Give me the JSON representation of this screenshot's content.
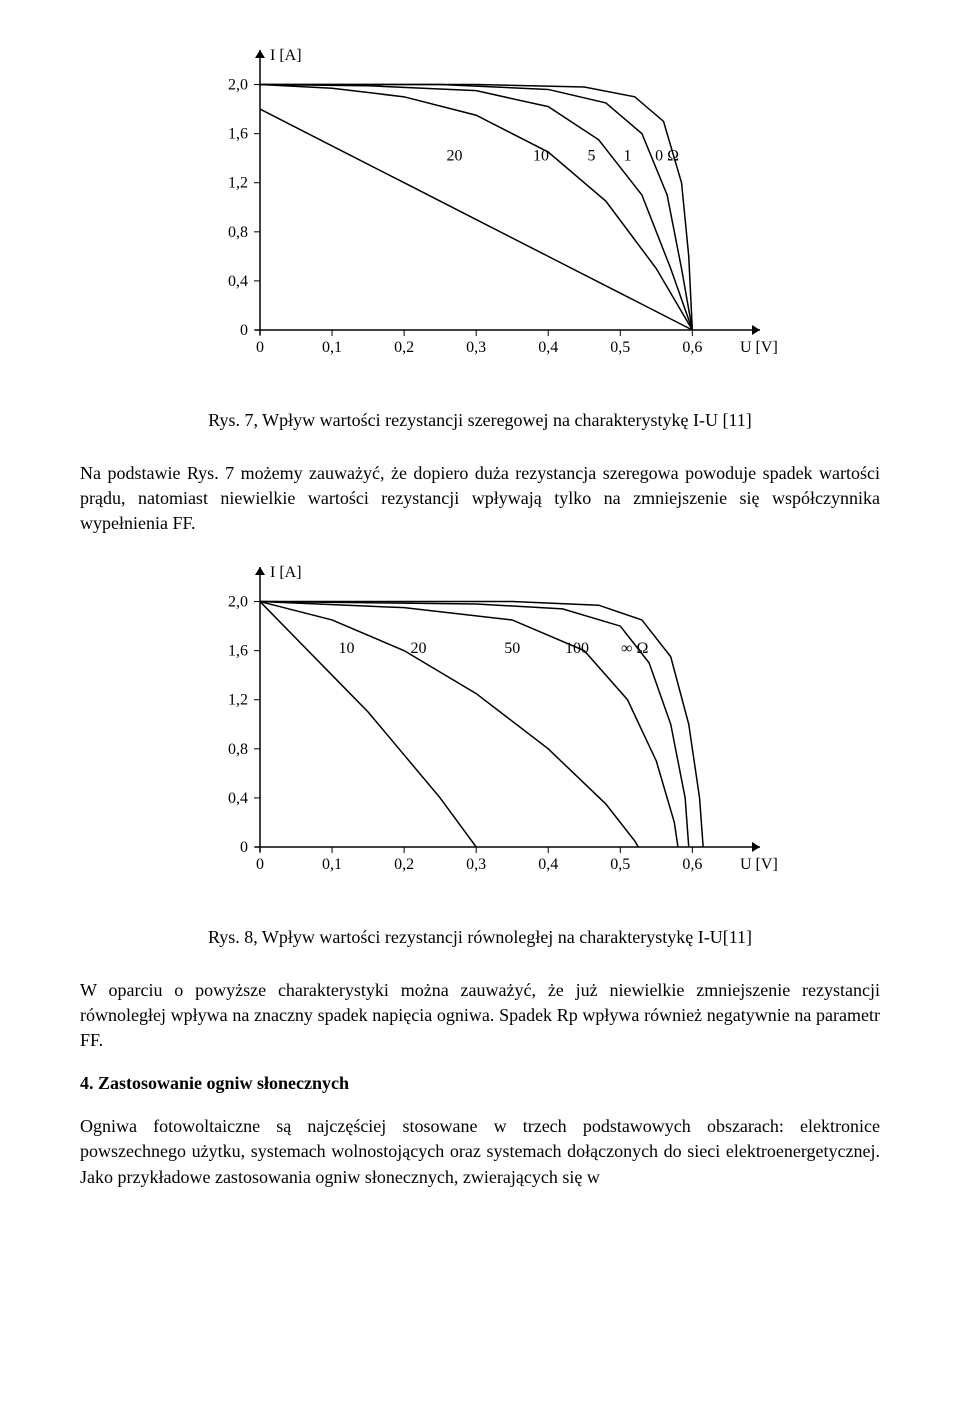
{
  "chart1": {
    "type": "line",
    "y_label": "I [A]",
    "x_label": "U [V]",
    "x_ticks": [
      "0",
      "0,1",
      "0,2",
      "0,3",
      "0,4",
      "0,5",
      "0,6"
    ],
    "y_ticks": [
      "0",
      "0,4",
      "0,8",
      "1,2",
      "1,6",
      "2,0"
    ],
    "xlim": [
      0,
      0.68
    ],
    "ylim": [
      0,
      2.2
    ],
    "curve_labels": [
      "20",
      "10",
      "5",
      "1",
      "0 Ω"
    ],
    "stroke_color": "#000000",
    "background_color": "#ffffff",
    "line_width": 1.5,
    "font_size": 16,
    "series": [
      {
        "label": "0",
        "points": [
          [
            0,
            2.0
          ],
          [
            0.3,
            2.0
          ],
          [
            0.45,
            1.98
          ],
          [
            0.52,
            1.9
          ],
          [
            0.56,
            1.7
          ],
          [
            0.585,
            1.2
          ],
          [
            0.595,
            0.6
          ],
          [
            0.6,
            0
          ]
        ]
      },
      {
        "label": "1",
        "points": [
          [
            0,
            2.0
          ],
          [
            0.25,
            2.0
          ],
          [
            0.4,
            1.96
          ],
          [
            0.48,
            1.85
          ],
          [
            0.53,
            1.6
          ],
          [
            0.565,
            1.1
          ],
          [
            0.585,
            0.5
          ],
          [
            0.6,
            0
          ]
        ]
      },
      {
        "label": "5",
        "points": [
          [
            0,
            2.0
          ],
          [
            0.15,
            1.99
          ],
          [
            0.3,
            1.95
          ],
          [
            0.4,
            1.82
          ],
          [
            0.47,
            1.55
          ],
          [
            0.53,
            1.1
          ],
          [
            0.57,
            0.5
          ],
          [
            0.6,
            0
          ]
        ]
      },
      {
        "label": "10",
        "points": [
          [
            0,
            2.0
          ],
          [
            0.1,
            1.97
          ],
          [
            0.2,
            1.9
          ],
          [
            0.3,
            1.75
          ],
          [
            0.4,
            1.45
          ],
          [
            0.48,
            1.05
          ],
          [
            0.55,
            0.5
          ],
          [
            0.6,
            0
          ]
        ]
      },
      {
        "label": "20",
        "points": [
          [
            0,
            1.8
          ],
          [
            0.1,
            1.5
          ],
          [
            0.2,
            1.2
          ],
          [
            0.3,
            0.9
          ],
          [
            0.4,
            0.6
          ],
          [
            0.5,
            0.3
          ],
          [
            0.6,
            0
          ]
        ]
      }
    ]
  },
  "caption1": "Rys. 7, Wpływ wartości rezystancji szeregowej na charakterystykę I-U [11]",
  "para1": "Na podstawie Rys. 7 możemy zauważyć, że dopiero duża rezystancja szeregowa powoduje spadek wartości prądu, natomiast niewielkie wartości rezystancji wpływają tylko na zmniejszenie się współczynnika wypełnienia FF.",
  "chart2": {
    "type": "line",
    "y_label": "I [A]",
    "x_label": "U [V]",
    "x_ticks": [
      "0",
      "0,1",
      "0,2",
      "0,3",
      "0,4",
      "0,5",
      "0,6"
    ],
    "y_ticks": [
      "0",
      "0,4",
      "0,8",
      "1,2",
      "1,6",
      "2,0"
    ],
    "xlim": [
      0,
      0.68
    ],
    "ylim": [
      0,
      2.2
    ],
    "curve_labels": [
      "10",
      "20",
      "50",
      "100",
      "∞ Ω"
    ],
    "stroke_color": "#000000",
    "background_color": "#ffffff",
    "line_width": 1.5,
    "font_size": 16,
    "series": [
      {
        "label": "inf",
        "points": [
          [
            0,
            2.0
          ],
          [
            0.35,
            2.0
          ],
          [
            0.47,
            1.97
          ],
          [
            0.53,
            1.85
          ],
          [
            0.57,
            1.55
          ],
          [
            0.595,
            1.0
          ],
          [
            0.61,
            0.4
          ],
          [
            0.615,
            0
          ]
        ]
      },
      {
        "label": "100",
        "points": [
          [
            0,
            2.0
          ],
          [
            0.3,
            1.98
          ],
          [
            0.42,
            1.94
          ],
          [
            0.5,
            1.8
          ],
          [
            0.54,
            1.5
          ],
          [
            0.57,
            1.0
          ],
          [
            0.59,
            0.4
          ],
          [
            0.595,
            0
          ]
        ]
      },
      {
        "label": "50",
        "points": [
          [
            0,
            2.0
          ],
          [
            0.2,
            1.95
          ],
          [
            0.35,
            1.85
          ],
          [
            0.45,
            1.6
          ],
          [
            0.51,
            1.2
          ],
          [
            0.55,
            0.7
          ],
          [
            0.575,
            0.2
          ],
          [
            0.58,
            0
          ]
        ]
      },
      {
        "label": "20",
        "points": [
          [
            0,
            2.0
          ],
          [
            0.1,
            1.85
          ],
          [
            0.2,
            1.6
          ],
          [
            0.3,
            1.25
          ],
          [
            0.4,
            0.8
          ],
          [
            0.48,
            0.35
          ],
          [
            0.52,
            0.05
          ],
          [
            0.525,
            0
          ]
        ]
      },
      {
        "label": "10",
        "points": [
          [
            0,
            2.0
          ],
          [
            0.05,
            1.7
          ],
          [
            0.1,
            1.4
          ],
          [
            0.15,
            1.1
          ],
          [
            0.2,
            0.75
          ],
          [
            0.25,
            0.4
          ],
          [
            0.29,
            0.08
          ],
          [
            0.3,
            0
          ]
        ]
      }
    ]
  },
  "caption2": "Rys. 8, Wpływ wartości rezystancji równoległej na charakterystykę I-U[11]",
  "para2": "W oparciu o powyższe charakterystyki można zauważyć, że już niewielkie zmniejszenie rezystancji równoległej wpływa na znaczny spadek napięcia ogniwa. Spadek Rp wpływa również negatywnie na parametr FF.",
  "section_title": "4. Zastosowanie ogniw słonecznych",
  "para3": "Ogniwa fotowoltaiczne są najczęściej stosowane w trzech podstawowych obszarach: elektronice powszechnego użytku, systemach wolnostojących oraz systemach dołączonych do sieci elektroenergetycznej. Jako przykładowe zastosowania ogniw słonecznych, zwierających się w"
}
